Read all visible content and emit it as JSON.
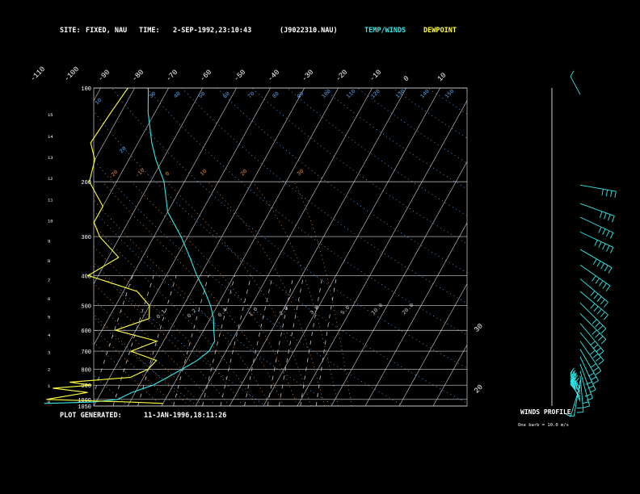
{
  "header": {
    "site_label": "SITE:",
    "site_value": "FIXED, NAU",
    "time_label": "TIME:",
    "time_value": "2-SEP-1992,23:10:43",
    "file": "(J9022310.NAU)",
    "temp_winds": "TEMP/WINDS",
    "dewpoint": "DEWPOINT"
  },
  "footer": {
    "label": "PLOT GENERATED:",
    "value": "11-JAN-1996,18:11:26"
  },
  "winds_profile": {
    "title": "WINDS PROFILE",
    "note": "One barb = 10.0 m/s"
  },
  "colors": {
    "temp": "#33e8e8",
    "dewpoint": "#ffff40",
    "isobar": "#cfcfcf",
    "isotherm": "#cfcfcf",
    "dry_adiabat": "#5ba3e6",
    "moist_adiabat": "#e4883c",
    "mixing_ratio": "#c7c7c7",
    "barbs": "#33e8e8",
    "header_winds": "#33e8e8",
    "header_dew": "#ffff40"
  },
  "chart_data": {
    "type": "line",
    "title": "",
    "xlabel": "",
    "ylabel": "",
    "pressure_levels_hpa": [
      100,
      200,
      300,
      400,
      500,
      600,
      700,
      800,
      900,
      1000,
      1050
    ],
    "pressure_range_hpa": [
      1050,
      100
    ],
    "height_ticks_km": [
      "0",
      "1",
      "2",
      "3",
      "4",
      "5",
      "6",
      "7",
      "8",
      "9",
      "10",
      "11",
      "12",
      "13",
      "14",
      "15"
    ],
    "isotherm_labels_c": [
      "-110",
      "-100",
      "-90",
      "-80",
      "-70",
      "-60",
      "-50",
      "-40",
      "-30",
      "-20",
      "-10",
      "0",
      "10",
      "20",
      "30"
    ],
    "dry_adiabat_labels": [
      "10",
      "20",
      "30",
      "40",
      "50",
      "60",
      "70",
      "80",
      "90",
      "100",
      "110",
      "120",
      "130",
      "140",
      "150"
    ],
    "moist_adiabat_labels": [
      "-20",
      "-10",
      "0",
      "10",
      "20",
      "30"
    ],
    "mixing_ratio_labels": [
      "0.1",
      "0.2",
      "0.4",
      "1.0",
      "2.0",
      "3.0",
      "5.0",
      "10.0",
      "20.0"
    ],
    "series": [
      {
        "name": "TEMP",
        "points": [
          [
            -55,
            1030
          ],
          [
            -41,
            1020
          ],
          [
            -34,
            1000
          ],
          [
            -31,
            950
          ],
          [
            -26,
            900
          ],
          [
            -23,
            850
          ],
          [
            -20,
            800
          ],
          [
            -17,
            750
          ],
          [
            -15,
            700
          ],
          [
            -15,
            650
          ],
          [
            -17,
            600
          ],
          [
            -19,
            550
          ],
          [
            -22,
            500
          ],
          [
            -26,
            450
          ],
          [
            -31,
            400
          ],
          [
            -36,
            350
          ],
          [
            -42,
            300
          ],
          [
            -50,
            250
          ],
          [
            -56,
            200
          ],
          [
            -62,
            170
          ],
          [
            -66,
            150
          ],
          [
            -72,
            120
          ],
          [
            -76,
            100
          ]
        ]
      },
      {
        "name": "DEWPOINT",
        "points": [
          [
            -20,
            1030
          ],
          [
            -30,
            1020
          ],
          [
            -55,
            1000
          ],
          [
            -44,
            950
          ],
          [
            -55,
            920
          ],
          [
            -44,
            900
          ],
          [
            -51,
            880
          ],
          [
            -34,
            850
          ],
          [
            -30,
            800
          ],
          [
            -29,
            750
          ],
          [
            -38,
            700
          ],
          [
            -32,
            650
          ],
          [
            -46,
            600
          ],
          [
            -38,
            550
          ],
          [
            -40,
            500
          ],
          [
            -46,
            450
          ],
          [
            -63,
            400
          ],
          [
            -57,
            350
          ],
          [
            -66,
            300
          ],
          [
            -70,
            270
          ],
          [
            -70,
            240
          ],
          [
            -78,
            200
          ],
          [
            -80,
            170
          ],
          [
            -84,
            150
          ],
          [
            -83,
            120
          ],
          [
            -82,
            100
          ]
        ]
      }
    ],
    "winds": [
      {
        "p": 1015,
        "dir": 50,
        "spd": 22
      },
      {
        "p": 1000,
        "dir": 60,
        "spd": 34
      },
      {
        "p": 980,
        "dir": 70,
        "spd": 42
      },
      {
        "p": 960,
        "dir": 55,
        "spd": 50
      },
      {
        "p": 940,
        "dir": 80,
        "spd": 60
      },
      {
        "p": 920,
        "dir": 70,
        "spd": 40
      },
      {
        "p": 900,
        "dir": 150,
        "spd": 14
      },
      {
        "p": 870,
        "dir": 170,
        "spd": 15
      },
      {
        "p": 840,
        "dir": 185,
        "spd": 20
      },
      {
        "p": 810,
        "dir": 195,
        "spd": 22
      },
      {
        "p": 770,
        "dir": 200,
        "spd": 26
      },
      {
        "p": 730,
        "dir": 205,
        "spd": 30
      },
      {
        "p": 690,
        "dir": 210,
        "spd": 34
      },
      {
        "p": 650,
        "dir": 215,
        "spd": 38
      },
      {
        "p": 610,
        "dir": 220,
        "spd": 40
      },
      {
        "p": 570,
        "dir": 220,
        "spd": 40
      },
      {
        "p": 530,
        "dir": 225,
        "spd": 44
      },
      {
        "p": 490,
        "dir": 225,
        "spd": 48
      },
      {
        "p": 450,
        "dir": 230,
        "spd": 52
      },
      {
        "p": 410,
        "dir": 230,
        "spd": 54
      },
      {
        "p": 370,
        "dir": 235,
        "spd": 56
      },
      {
        "p": 330,
        "dir": 240,
        "spd": 58
      },
      {
        "p": 290,
        "dir": 245,
        "spd": 54
      },
      {
        "p": 260,
        "dir": 245,
        "spd": 48
      },
      {
        "p": 235,
        "dir": 250,
        "spd": 46
      },
      {
        "p": 205,
        "dir": 260,
        "spd": 40
      },
      {
        "p": 105,
        "dir": 60,
        "spd": 12
      }
    ]
  }
}
